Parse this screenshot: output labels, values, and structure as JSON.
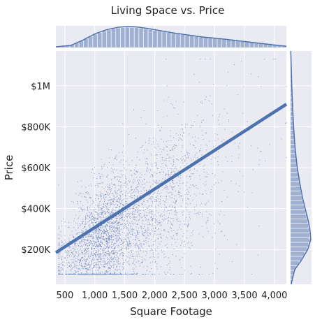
{
  "chart_data": {
    "type": "scatter",
    "title": "Living Space vs. Price",
    "xlabel": "Square Footage",
    "ylabel": "Price",
    "xlim": [
      350,
      4200
    ],
    "ylim": [
      30000,
      1170000
    ],
    "xticks": [
      {
        "value": 500,
        "label": "500"
      },
      {
        "value": 1000,
        "label": "1,000"
      },
      {
        "value": 1500,
        "label": "1,500"
      },
      {
        "value": 2000,
        "label": "2,000"
      },
      {
        "value": 2500,
        "label": "2,500"
      },
      {
        "value": 3000,
        "label": "3,000"
      },
      {
        "value": 3500,
        "label": "3,500"
      },
      {
        "value": 4000,
        "label": "4,000"
      }
    ],
    "yticks": [
      {
        "value": 200000,
        "label": "$200K"
      },
      {
        "value": 400000,
        "label": "$400K"
      },
      {
        "value": 600000,
        "label": "$600K"
      },
      {
        "value": 800000,
        "label": "$800K"
      },
      {
        "value": 1000000,
        "label": "$1M"
      }
    ],
    "regression_line": {
      "x": [
        350,
        4200
      ],
      "y": [
        185000,
        910000
      ]
    },
    "scatter_description": {
      "approx_points": 14000,
      "x_range": [
        400,
        4200
      ],
      "y_range": [
        80000,
        1130000
      ]
    },
    "marginal_x_density": {
      "x": [
        350,
        600,
        800,
        1000,
        1200,
        1400,
        1550,
        1700,
        1900,
        2100,
        2300,
        2500,
        2800,
        3100,
        3400,
        3700,
        4000,
        4200
      ],
      "density": [
        0.03,
        0.1,
        0.35,
        0.65,
        0.85,
        0.97,
        1.0,
        0.98,
        0.9,
        0.8,
        0.7,
        0.62,
        0.5,
        0.42,
        0.32,
        0.22,
        0.12,
        0.06
      ]
    },
    "marginal_y_density": {
      "y": [
        30000,
        100000,
        150000,
        200000,
        250000,
        300000,
        350000,
        400000,
        450000,
        500000,
        600000,
        700000,
        800000,
        900000,
        1000000,
        1100000,
        1170000
      ],
      "density": [
        0.03,
        0.2,
        0.55,
        0.85,
        1.0,
        0.95,
        0.85,
        0.72,
        0.6,
        0.5,
        0.33,
        0.22,
        0.15,
        0.1,
        0.06,
        0.03,
        0.01
      ]
    },
    "grid": true,
    "colors": {
      "points": "#4c72b0",
      "line": "#4c72b0",
      "panel_background": "#eaeaf2",
      "grid": "#ffffff",
      "hist_bar": "#a0b0d0"
    }
  }
}
